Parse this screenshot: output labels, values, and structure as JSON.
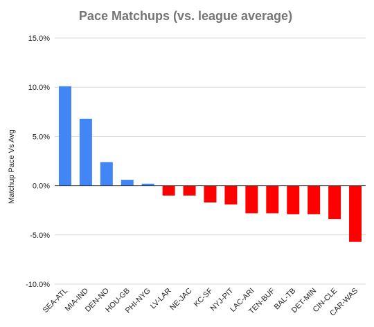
{
  "chart_data": {
    "type": "bar",
    "title": "Pace Matchups (vs. league average)",
    "xlabel": "",
    "ylabel": "Matchup Pace Vs Avg",
    "ylim": [
      -10,
      15
    ],
    "yticks": [
      "15.0%",
      "10.0%",
      "5.0%",
      "0.0%",
      "-5.0%",
      "-10.0%"
    ],
    "grid": true,
    "legend": "none",
    "categories": [
      "SEA-ATL",
      "MIA-IND",
      "DEN-NO",
      "HOU-GB",
      "PHI-NYG",
      "LV-LAR",
      "NE-JAC",
      "KC-SF",
      "NYJ-PIT",
      "LAC-ARI",
      "TEN-BUF",
      "BAL-TB",
      "DET-MIN",
      "CIN-CLE",
      "CAR-WAS"
    ],
    "values": [
      10.1,
      6.8,
      2.4,
      0.6,
      0.2,
      -1.0,
      -1.0,
      -1.7,
      -1.9,
      -2.8,
      -2.8,
      -2.9,
      -2.9,
      -3.4,
      -5.7
    ],
    "colors": {
      "positive": "#4285F4",
      "negative": "#FF0000"
    }
  }
}
